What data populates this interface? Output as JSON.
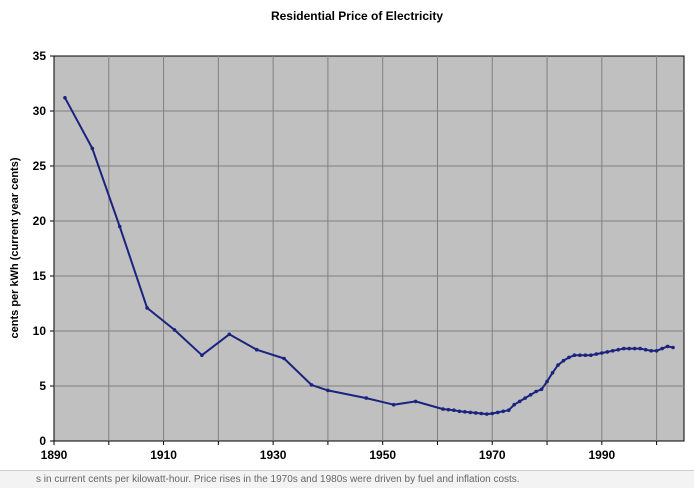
{
  "chart_data": {
    "type": "line",
    "title": "Residential Price of Electricity",
    "xlabel": "",
    "ylabel": "cents per kWh (current year cents)",
    "xlim": [
      1890,
      2005
    ],
    "ylim": [
      0,
      35
    ],
    "xticks": [
      1890,
      1910,
      1930,
      1950,
      1970,
      1990
    ],
    "yticks": [
      0,
      5,
      10,
      15,
      20,
      25,
      30,
      35
    ],
    "grid": true,
    "plot_background": "#c0c0c0",
    "series": [
      {
        "color": "#1a237e",
        "x": [
          1892,
          1897,
          1902,
          1907,
          1912,
          1917,
          1922,
          1927,
          1932,
          1937,
          1940,
          1947,
          1952,
          1956,
          1961,
          1962,
          1963,
          1964,
          1965,
          1966,
          1967,
          1968,
          1969,
          1970,
          1971,
          1972,
          1973,
          1974,
          1975,
          1976,
          1977,
          1978,
          1979,
          1980,
          1981,
          1982,
          1983,
          1984,
          1985,
          1986,
          1987,
          1988,
          1989,
          1990,
          1991,
          1992,
          1993,
          1994,
          1995,
          1996,
          1997,
          1998,
          1999,
          2000,
          2001,
          2002,
          2003
        ],
        "y": [
          31.2,
          26.6,
          19.5,
          12.1,
          10.1,
          7.8,
          9.7,
          8.3,
          7.5,
          5.1,
          4.6,
          3.9,
          3.3,
          3.6,
          2.9,
          2.85,
          2.8,
          2.7,
          2.65,
          2.6,
          2.55,
          2.5,
          2.45,
          2.5,
          2.6,
          2.7,
          2.8,
          3.3,
          3.6,
          3.9,
          4.2,
          4.5,
          4.7,
          5.4,
          6.2,
          6.9,
          7.3,
          7.6,
          7.8,
          7.8,
          7.8,
          7.8,
          7.9,
          8.0,
          8.1,
          8.2,
          8.3,
          8.4,
          8.4,
          8.4,
          8.4,
          8.3,
          8.2,
          8.2,
          8.4,
          8.6,
          8.5
        ]
      }
    ]
  },
  "caption": {
    "text": "s in current cents per kilowatt-hour. Price rises in the 1970s and 1980s were driven by fuel and inflation costs."
  },
  "colors": {
    "plot_background": "#c0c0c0",
    "grid": "#808080",
    "line": "#1a237e"
  }
}
